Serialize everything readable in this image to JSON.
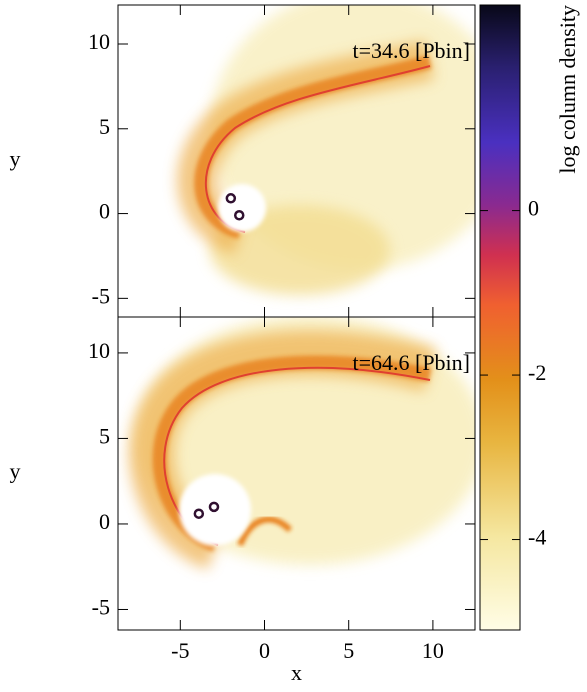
{
  "chart_data": [
    {
      "type": "heatmap",
      "annotation": "t=34.6 [Pbin]",
      "ylabel": "y",
      "xlim": [
        -8.7,
        12.5
      ],
      "ylim": [
        -6.1,
        12.3
      ],
      "xticks": [
        -5,
        0,
        5,
        10
      ],
      "yticks": [
        -5,
        0,
        5,
        10
      ],
      "points": {
        "x": [
          -2.0,
          -1.5
        ],
        "y": [
          0.9,
          -0.1
        ]
      }
    },
    {
      "type": "heatmap",
      "annotation": "t=64.6 [Pbin]",
      "ylabel": "y",
      "xlabel": "x",
      "xlim": [
        -8.7,
        12.5
      ],
      "ylim": [
        -6.2,
        12.1
      ],
      "xticks": [
        -5,
        0,
        5,
        10
      ],
      "yticks": [
        -5,
        0,
        5,
        10
      ],
      "points": {
        "x": [
          -3.9,
          -3.0
        ],
        "y": [
          0.6,
          1.0
        ]
      }
    },
    {
      "type": "colorbar",
      "label": "log column density",
      "ylim": [
        -5.1,
        2.5
      ],
      "yticks": [
        -4,
        -2,
        0
      ]
    }
  ]
}
